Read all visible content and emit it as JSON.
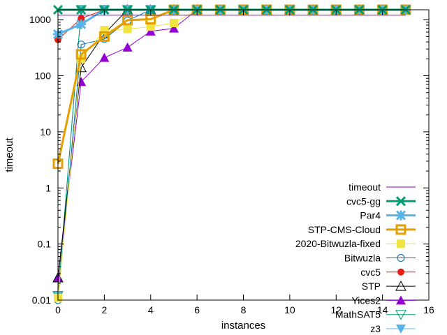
{
  "chart_data": {
    "type": "line",
    "xlabel": "instances",
    "ylabel": "timeout",
    "xlim": [
      0,
      16
    ],
    "ylim": [
      0.01,
      1500
    ],
    "yscale": "log",
    "grid": false,
    "legend": "bottom-right",
    "x_ticks": [
      "0",
      "2",
      "4",
      "6",
      "8",
      "10",
      "12",
      "14",
      "16"
    ],
    "x_tick_values": [
      0,
      2,
      4,
      6,
      8,
      10,
      12,
      14,
      16
    ],
    "y_ticks": [
      "0.01",
      "0.1",
      "1",
      "10",
      "100",
      "1000"
    ],
    "y_tick_values": [
      0.01,
      0.1,
      1,
      10,
      100,
      1000
    ],
    "series": [
      {
        "name": "timeout",
        "color": "#9400d3",
        "width": 1,
        "marker": "none",
        "x": [
          0,
          15
        ],
        "y": [
          1200,
          1200
        ]
      },
      {
        "name": "cvc5-gg",
        "color": "#009e73",
        "width": 3,
        "marker": "x",
        "x": [
          0,
          1,
          2,
          3,
          4,
          5,
          6,
          7,
          8,
          9,
          10,
          11,
          12,
          13,
          14,
          15
        ],
        "y": [
          1700,
          1700,
          1700,
          1700,
          1700,
          1700,
          1700,
          1700,
          1700,
          1700,
          1700,
          1700,
          1700,
          1700,
          1700,
          1700
        ]
      },
      {
        "name": "Par4",
        "color": "#56b4e9",
        "width": 3,
        "marker": "star",
        "x": [
          0,
          1,
          2,
          3,
          4,
          5,
          6,
          7,
          8,
          9,
          10,
          11,
          12,
          13,
          14,
          15
        ],
        "y": [
          550,
          830,
          1700,
          1700,
          1700,
          1700,
          1700,
          1700,
          1700,
          1700,
          1700,
          1700,
          1700,
          1700,
          1700,
          1700
        ]
      },
      {
        "name": "STP-CMS-Cloud",
        "color": "#e69f00",
        "width": 3,
        "marker": "square",
        "x": [
          0,
          1,
          2,
          3,
          4,
          5,
          6,
          7,
          8,
          9,
          10,
          11,
          12,
          13,
          14,
          15
        ],
        "y": [
          2.7,
          240,
          500,
          980,
          1020,
          1700,
          1700,
          1700,
          1700,
          1700,
          1700,
          1700,
          1700,
          1700,
          1700,
          1700
        ]
      },
      {
        "name": "2020-Bitwuzla-fixed",
        "color": "#f0e442",
        "width": 1,
        "marker": "filled-square",
        "x": [
          0,
          1,
          2,
          3,
          4,
          5,
          6,
          7,
          8,
          9,
          10,
          11,
          12,
          13,
          14,
          15
        ],
        "y": [
          0.011,
          200,
          650,
          680,
          750,
          870,
          1700,
          1700,
          1700,
          1700,
          1700,
          1700,
          1700,
          1700,
          1700,
          1700
        ]
      },
      {
        "name": "Bitwuzla",
        "color": "#0072b2",
        "width": 1,
        "marker": "circle",
        "x": [
          0,
          1,
          2,
          3,
          4,
          5,
          6,
          7,
          8,
          9,
          10,
          11,
          12,
          13,
          14,
          15
        ],
        "y": [
          0.01,
          360,
          450,
          960,
          1700,
          1700,
          1700,
          1700,
          1700,
          1700,
          1700,
          1700,
          1700,
          1700,
          1700,
          1700
        ]
      },
      {
        "name": "cvc5",
        "color": "#e51e10",
        "width": 1,
        "marker": "filled-circle",
        "x": [
          0,
          1,
          2,
          3,
          4,
          5,
          6,
          7,
          8,
          9,
          10,
          11,
          12,
          13,
          14,
          15
        ],
        "y": [
          440,
          1050,
          1700,
          1700,
          1700,
          1700,
          1700,
          1700,
          1700,
          1700,
          1700,
          1700,
          1700,
          1700,
          1700,
          1700
        ]
      },
      {
        "name": "STP",
        "color": "#000000",
        "width": 1,
        "marker": "triangle",
        "x": [
          0,
          1,
          2,
          3,
          4,
          5,
          6,
          7,
          8,
          9,
          10,
          11,
          12,
          13,
          14,
          15
        ],
        "y": [
          0.025,
          140,
          560,
          1700,
          1700,
          1700,
          1700,
          1700,
          1700,
          1700,
          1700,
          1700,
          1700,
          1700,
          1700,
          1700
        ]
      },
      {
        "name": "Yices2",
        "color": "#9400d3",
        "width": 1,
        "marker": "filled-triangle",
        "x": [
          0,
          1,
          2,
          3,
          4,
          5,
          6,
          7,
          8,
          9,
          10,
          11,
          12,
          13,
          14,
          15
        ],
        "y": [
          0.025,
          78,
          210,
          320,
          620,
          700,
          1700,
          1700,
          1700,
          1700,
          1700,
          1700,
          1700,
          1700,
          1700,
          1700
        ]
      },
      {
        "name": "MathSAT5",
        "color": "#009e73",
        "width": 1,
        "marker": "triangle-down",
        "x": [
          0,
          1,
          2,
          3,
          4,
          5,
          6,
          7,
          8,
          9,
          10,
          11,
          12,
          13,
          14,
          15
        ],
        "y": [
          0.012,
          1700,
          1700,
          1700,
          1700,
          1700,
          1700,
          1700,
          1700,
          1700,
          1700,
          1700,
          1700,
          1700,
          1700,
          1700
        ]
      },
      {
        "name": "z3",
        "color": "#56b4e9",
        "width": 1,
        "marker": "filled-triangle-down",
        "x": [
          0,
          1,
          2,
          3,
          4,
          5,
          6,
          7,
          8,
          9,
          10,
          11,
          12,
          13,
          14,
          15
        ],
        "y": [
          0.012,
          1700,
          1700,
          1700,
          1700,
          1700,
          1700,
          1700,
          1700,
          1700,
          1700,
          1700,
          1700,
          1700,
          1700,
          1700
        ]
      }
    ]
  }
}
